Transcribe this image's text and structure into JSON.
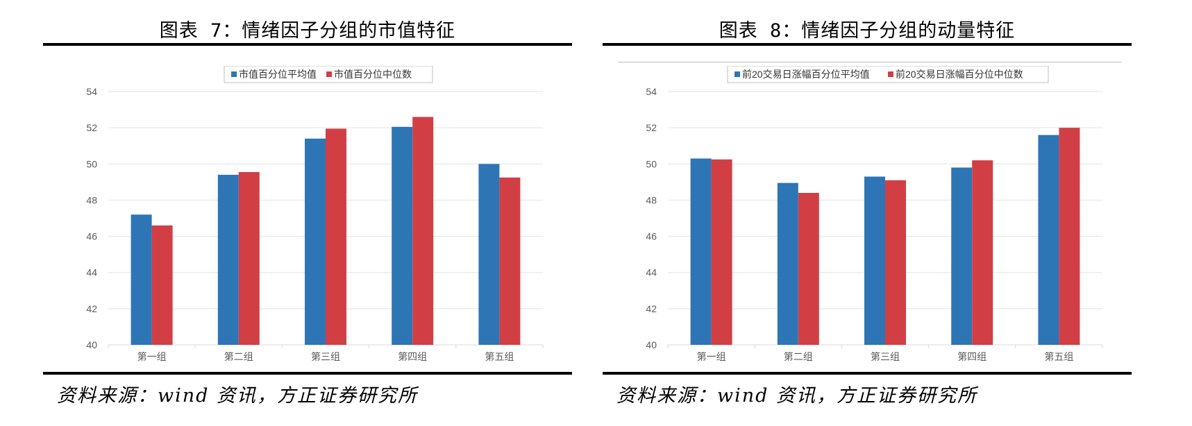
{
  "charts": [
    {
      "title": "图表 7：情绪因子分组的市值特征",
      "source": "资料来源：wind 资讯，方正证券研究所",
      "colors": [
        "#2e75b6",
        "#d13f45"
      ]
    },
    {
      "title": "图表 8：情绪因子分组的动量特征",
      "source": "资料来源：wind 资讯，方正证券研究所",
      "colors": [
        "#2e75b6",
        "#d13f45"
      ]
    }
  ],
  "chart_data": [
    {
      "type": "bar",
      "categories": [
        "第一组",
        "第二组",
        "第三组",
        "第四组",
        "第五组"
      ],
      "series": [
        {
          "name": "市值百分位平均值",
          "values": [
            47.2,
            49.4,
            51.4,
            52.05,
            50.0
          ]
        },
        {
          "name": "市值百分位中位数",
          "values": [
            46.6,
            49.55,
            51.95,
            52.6,
            49.25
          ]
        }
      ],
      "ylim": [
        40,
        54
      ],
      "yticks": [
        "40",
        "42",
        "44",
        "46",
        "48",
        "50",
        "52",
        "54"
      ],
      "grid": true,
      "legend": "top"
    },
    {
      "type": "bar",
      "categories": [
        "第一组",
        "第二组",
        "第三组",
        "第四组",
        "第五组"
      ],
      "series": [
        {
          "name": "前20交易日涨幅百分位平均值",
          "values": [
            50.3,
            48.95,
            49.3,
            49.8,
            51.6
          ]
        },
        {
          "name": "前20交易日涨幅百分位中位数",
          "values": [
            50.25,
            48.4,
            49.1,
            50.2,
            52.0
          ]
        }
      ],
      "ylim": [
        40,
        54
      ],
      "yticks": [
        "40",
        "42",
        "44",
        "46",
        "48",
        "50",
        "52",
        "54"
      ],
      "grid": true,
      "legend": "top"
    }
  ]
}
